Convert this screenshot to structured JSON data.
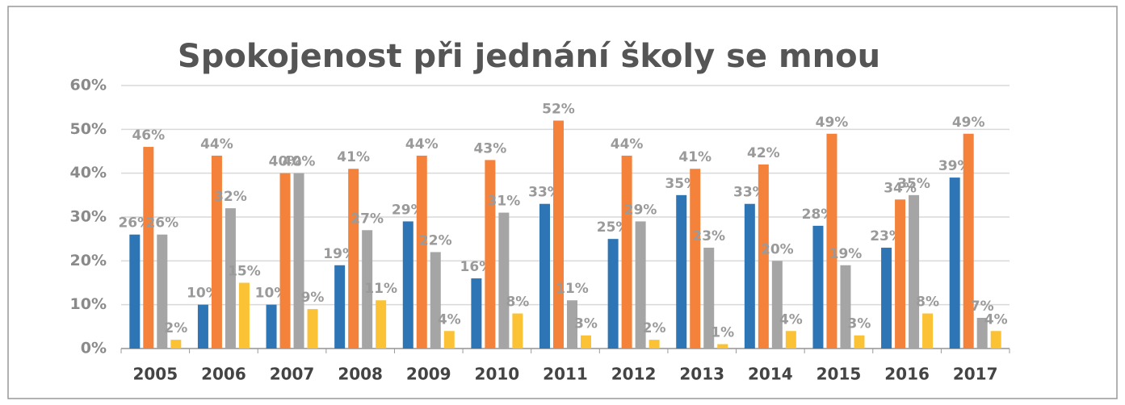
{
  "chart_data": {
    "type": "bar",
    "title": "Spokojenost při jednání školy se mnou",
    "categories": [
      "2005",
      "2006",
      "2007",
      "2008",
      "2009",
      "2010",
      "2011",
      "2012",
      "2013",
      "2014",
      "2015",
      "2016",
      "2017"
    ],
    "series": [
      {
        "color": "#2e75b6",
        "values": [
          26,
          10,
          10,
          19,
          29,
          16,
          33,
          25,
          35,
          33,
          28,
          23,
          39
        ],
        "value_labels": [
          "26%",
          "10%",
          "10%",
          "19%",
          "29%",
          "16%",
          "33%",
          "25%",
          "35%",
          "33%",
          "28%",
          "23%",
          "39%"
        ]
      },
      {
        "color": "#f4823a",
        "values": [
          46,
          44,
          40,
          41,
          44,
          43,
          52,
          44,
          41,
          42,
          49,
          34,
          49
        ],
        "value_labels": [
          "46%",
          "44%",
          "40%",
          "41%",
          "44%",
          "43%",
          "52%",
          "44%",
          "41%",
          "42%",
          "49%",
          "34%",
          "49%"
        ]
      },
      {
        "color": "#a5a5a5",
        "values": [
          26,
          32,
          40,
          27,
          22,
          31,
          11,
          29,
          23,
          20,
          19,
          35,
          7
        ],
        "value_labels": [
          "26%",
          "32%",
          "40%",
          "27%",
          "22%",
          "31%",
          "11%",
          "29%",
          "23%",
          "20%",
          "19%",
          "35%",
          "7%"
        ]
      },
      {
        "color": "#fbc236",
        "values": [
          2,
          15,
          9,
          11,
          4,
          8,
          3,
          2,
          1,
          4,
          3,
          8,
          4
        ],
        "value_labels": [
          "2%",
          "15%",
          "9%",
          "11%",
          "4%",
          "8%",
          "3%",
          "2%",
          "1%",
          "4%",
          "3%",
          "8%",
          "4%"
        ]
      }
    ],
    "ylim": [
      0,
      60
    ],
    "yticks": [
      {
        "value": 0,
        "label": "0%"
      },
      {
        "value": 10,
        "label": "10%"
      },
      {
        "value": 20,
        "label": "20%"
      },
      {
        "value": 30,
        "label": "30%"
      },
      {
        "value": 40,
        "label": "40%"
      },
      {
        "value": 50,
        "label": "50%"
      },
      {
        "value": 60,
        "label": "60%"
      }
    ],
    "grid": true
  }
}
